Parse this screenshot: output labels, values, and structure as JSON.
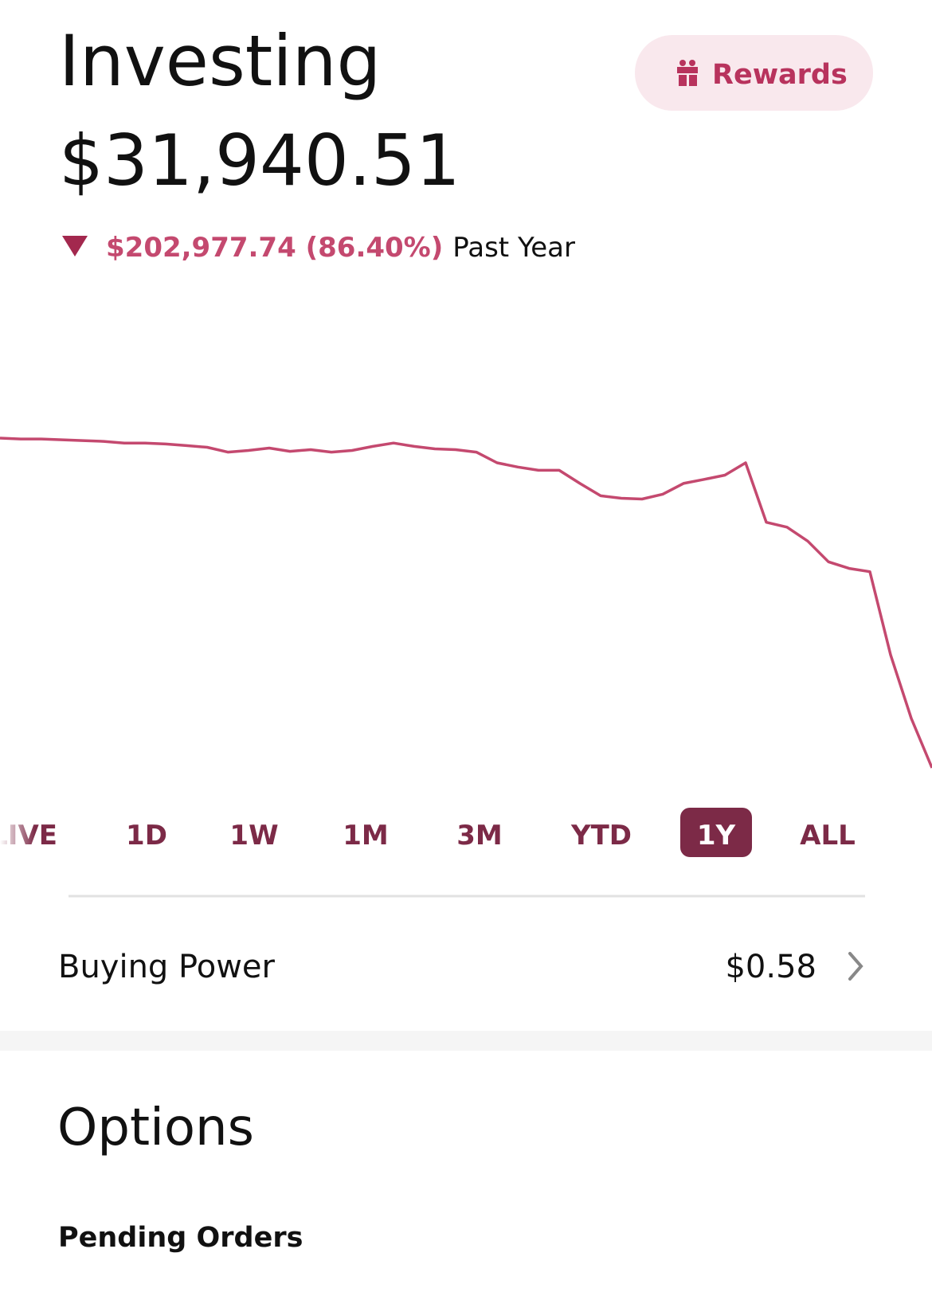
{
  "header": {
    "title": "Investing",
    "rewards": "Rewards",
    "portfolio_value": "$31,940.51",
    "change": "$202,977.74 (86.40%)",
    "change_period": "Past Year"
  },
  "chart_data": {
    "type": "line",
    "color": "#c4496f",
    "values": [
      234918.25,
      234400,
      234400,
      233900,
      233400,
      232900,
      231900,
      231900,
      231300,
      230300,
      229300,
      226300,
      227300,
      228800,
      226800,
      227800,
      226300,
      227300,
      229800,
      231900,
      229800,
      228300,
      227800,
      226300,
      219700,
      217100,
      215100,
      215100,
      207000,
      199400,
      197900,
      197400,
      200400,
      207000,
      209500,
      212100,
      219700,
      183100,
      180100,
      171500,
      158800,
      154700,
      152700,
      101500,
      62400,
      31940.51
    ]
  },
  "range_selector": {
    "options": [
      "LIVE",
      "1D",
      "1W",
      "1M",
      "3M",
      "YTD",
      "1Y",
      "ALL"
    ],
    "selected": "1Y"
  },
  "buying_power": {
    "label": "Buying Power",
    "value": "$0.58"
  },
  "options": {
    "title": "Options",
    "pending_orders": "Pending Orders"
  }
}
